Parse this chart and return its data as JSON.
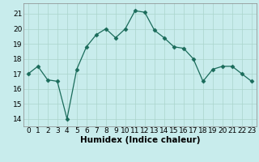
{
  "x": [
    0,
    1,
    2,
    3,
    4,
    5,
    6,
    7,
    8,
    9,
    10,
    11,
    12,
    13,
    14,
    15,
    16,
    17,
    18,
    19,
    20,
    21,
    22,
    23
  ],
  "y": [
    17.0,
    17.5,
    16.6,
    16.5,
    14.0,
    17.3,
    18.8,
    19.6,
    20.0,
    19.4,
    20.0,
    21.2,
    21.1,
    19.9,
    19.4,
    18.8,
    18.7,
    18.0,
    16.5,
    17.3,
    17.5,
    17.5,
    17.0,
    16.5
  ],
  "line_color": "#1a6b5a",
  "marker": "D",
  "marker_size": 2.5,
  "bg_color": "#c8ecec",
  "grid_color": "#aad4cc",
  "xlabel": "Humidex (Indice chaleur)",
  "ylim": [
    13.5,
    21.7
  ],
  "xlim": [
    -0.5,
    23.5
  ],
  "yticks": [
    14,
    15,
    16,
    17,
    18,
    19,
    20,
    21
  ],
  "xticks": [
    0,
    1,
    2,
    3,
    4,
    5,
    6,
    7,
    8,
    9,
    10,
    11,
    12,
    13,
    14,
    15,
    16,
    17,
    18,
    19,
    20,
    21,
    22,
    23
  ],
  "xlabel_fontsize": 7.5,
  "tick_fontsize": 6.5
}
